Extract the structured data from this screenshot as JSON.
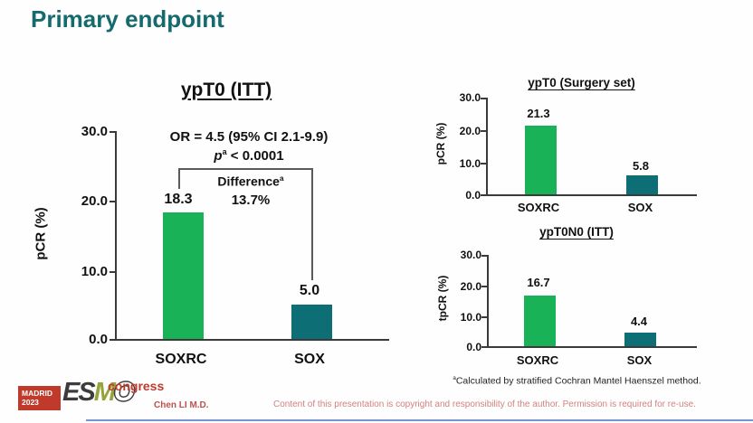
{
  "slide": {
    "title": "Primary endpoint",
    "presenter": "Chen LI M.D.",
    "copyright": "Content of this presentation is copyright and responsibility of the author. Permission is required for re-use.",
    "footnote_sup": "a",
    "footnote_text": "Calculated by stratified Cochran Mantel Haenszel method."
  },
  "logo": {
    "location": "MADRID",
    "year": "2023",
    "letters": [
      "E",
      "S",
      "M",
      "O"
    ],
    "event": "congress"
  },
  "colors": {
    "title_teal": "#156a6d",
    "bar_green": "#1ab256",
    "bar_teal": "#0e6e76",
    "logo_red": "#bf3a2b",
    "copyright_red": "#d3807f"
  },
  "annotations": {
    "or_text": "OR = 4.5 (95% CI 2.1-9.9)",
    "p_symbol": "p",
    "p_sup": "a",
    "p_rest": " < 0.0001",
    "difference_word": "Difference",
    "difference_sup": "a",
    "difference_value": "13.7%"
  },
  "chart_data": [
    {
      "type": "bar",
      "title": "ypT0 (ITT)",
      "categories": [
        "SOXRC",
        "SOX"
      ],
      "values": [
        18.3,
        5.0
      ],
      "value_labels": [
        "18.3",
        "5.0"
      ],
      "ylabel": "pCR (%)",
      "ylim": [
        0,
        30
      ],
      "yticks": [
        30,
        20,
        10,
        0
      ],
      "ytick_labels": [
        "30.0",
        "20.0",
        "10.0",
        "0.0"
      ],
      "bar_colors": [
        "#1ab256",
        "#0e6e76"
      ],
      "annotation": "OR = 4.5 (95% CI 2.1-9.9), p < 0.0001, difference 13.7%"
    },
    {
      "type": "bar",
      "title": "ypT0 (Surgery set)",
      "categories": [
        "SOXRC",
        "SOX"
      ],
      "values": [
        21.3,
        5.8
      ],
      "value_labels": [
        "21.3",
        "5.8"
      ],
      "ylabel": "pCR (%)",
      "ylim": [
        0,
        30
      ],
      "yticks": [
        30,
        20,
        10,
        0
      ],
      "ytick_labels": [
        "30.0",
        "20.0",
        "10.0",
        "0.0"
      ],
      "bar_colors": [
        "#1ab256",
        "#0e6e76"
      ]
    },
    {
      "type": "bar",
      "title": "ypT0N0 (ITT)",
      "categories": [
        "SOXRC",
        "SOX"
      ],
      "values": [
        16.7,
        4.4
      ],
      "value_labels": [
        "16.7",
        "4.4"
      ],
      "ylabel": "tpCR (%)",
      "ylim": [
        0,
        30
      ],
      "yticks": [
        30,
        20,
        10,
        0
      ],
      "ytick_labels": [
        "30.0",
        "20.0",
        "10.0",
        "0.0"
      ],
      "bar_colors": [
        "#1ab256",
        "#0e6e76"
      ]
    }
  ]
}
